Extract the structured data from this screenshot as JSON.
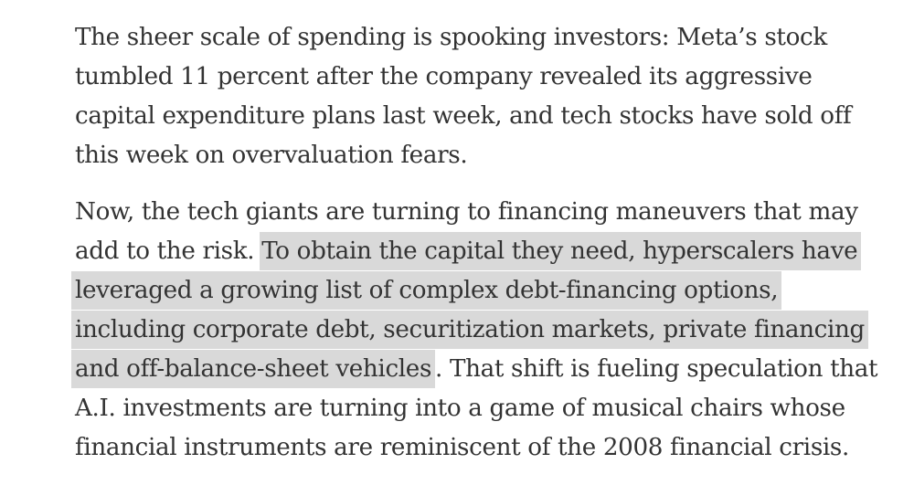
{
  "paragraphs": [
    {
      "lines": [
        "The sheer scale of spending is spooking investors: Meta’s stock",
        "tumbled 11 percent after the company revealed its aggressive",
        "capital expenditure plans last week, and tech stocks have sold off",
        "this week on overvaluation fears."
      ]
    },
    {
      "line1": "Now, the tech giants are turning to financing maneuvers that may",
      "line2_plain": "add to the risk. ",
      "line2_highlight": "To obtain the capital they need, hyperscalers have",
      "line3_highlight": "leveraged a growing list of complex debt-financing options,",
      "line4_highlight": "including corporate debt, securitization markets, private financing",
      "line5_highlight": "and off-balance-sheet vehicles",
      "line5_plain": ". That shift is fueling speculation that",
      "line6": "A.I. investments are turning into a game of musical chairs whose",
      "line7": "financial instruments are reminiscent of the 2008 financial crisis."
    }
  ],
  "highlight_color": "#d9d9d9",
  "text_color": "#333333"
}
